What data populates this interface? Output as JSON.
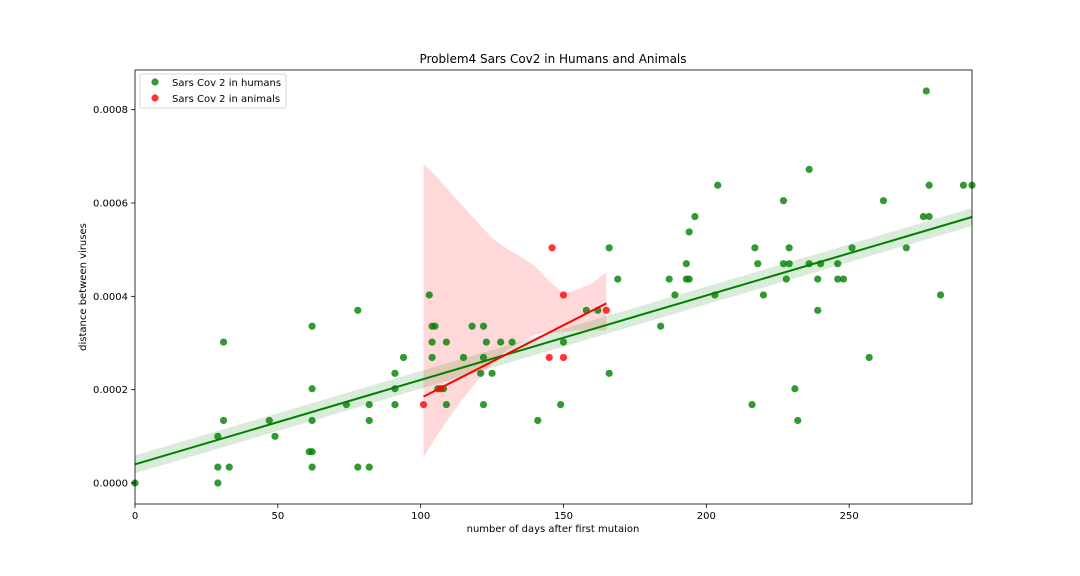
{
  "chart_data": {
    "type": "scatter",
    "title": "Problem4 Sars Cov2 in Humans and Animals",
    "xlabel": "number of days after first mutaion",
    "ylabel": "distance between viruses",
    "xlim": [
      0,
      293
    ],
    "ylim": [
      -4.5e-05,
      0.000885
    ],
    "xticks": [
      0,
      50,
      100,
      150,
      200,
      250
    ],
    "yticks": [
      0.0,
      0.0002,
      0.0004,
      0.0006,
      0.0008
    ],
    "xtick_labels": [
      "0",
      "50",
      "100",
      "150",
      "200",
      "250"
    ],
    "ytick_labels": [
      "0.0000",
      "0.0002",
      "0.0004",
      "0.0006",
      "0.0008"
    ],
    "legend_position": "top-left",
    "grid": false,
    "series": [
      {
        "name": "Sars Cov 2 in humans",
        "color": "#008000",
        "points": [
          [
            0,
            0.0
          ],
          [
            29,
            0.0
          ],
          [
            29,
            3.4e-05
          ],
          [
            29,
            0.0001
          ],
          [
            31,
            0.000302
          ],
          [
            31,
            0.000134
          ],
          [
            33,
            3.4e-05
          ],
          [
            47,
            0.000134
          ],
          [
            49,
            0.0001
          ],
          [
            62,
            0.000336
          ],
          [
            62,
            0.000202
          ],
          [
            62,
            0.000134
          ],
          [
            61,
            6.7e-05
          ],
          [
            62,
            6.7e-05
          ],
          [
            62,
            3.4e-05
          ],
          [
            74,
            0.000168
          ],
          [
            78,
            0.00037
          ],
          [
            78,
            3.4e-05
          ],
          [
            82,
            0.000168
          ],
          [
            82,
            0.000134
          ],
          [
            82,
            3.4e-05
          ],
          [
            91,
            0.000235
          ],
          [
            91,
            0.000202
          ],
          [
            91,
            0.000168
          ],
          [
            94,
            0.000269
          ],
          [
            103,
            0.000403
          ],
          [
            104,
            0.000336
          ],
          [
            105,
            0.000336
          ],
          [
            104,
            0.000302
          ],
          [
            104,
            0.000269
          ],
          [
            106,
            0.000202
          ],
          [
            108,
            0.000202
          ],
          [
            109,
            0.000302
          ],
          [
            109,
            0.000168
          ],
          [
            115,
            0.000269
          ],
          [
            118,
            0.000336
          ],
          [
            122,
            0.000336
          ],
          [
            123,
            0.000302
          ],
          [
            122,
            0.000269
          ],
          [
            121,
            0.000235
          ],
          [
            125,
            0.000235
          ],
          [
            122,
            0.000168
          ],
          [
            128,
            0.000302
          ],
          [
            132,
            0.000302
          ],
          [
            141,
            0.000134
          ],
          [
            149,
            0.000168
          ],
          [
            150,
            0.000302
          ],
          [
            158,
            0.00037
          ],
          [
            162,
            0.00037
          ],
          [
            166,
            0.000504
          ],
          [
            166,
            0.000235
          ],
          [
            169,
            0.000437
          ],
          [
            184,
            0.000336
          ],
          [
            187,
            0.000437
          ],
          [
            189,
            0.000403
          ],
          [
            193,
            0.00047
          ],
          [
            193,
            0.000437
          ],
          [
            194,
            0.000538
          ],
          [
            194,
            0.000437
          ],
          [
            196,
            0.000571
          ],
          [
            203,
            0.000403
          ],
          [
            204,
            0.000638
          ],
          [
            216,
            0.000168
          ],
          [
            217,
            0.000504
          ],
          [
            218,
            0.00047
          ],
          [
            220,
            0.000403
          ],
          [
            227,
            0.000605
          ],
          [
            227,
            0.00047
          ],
          [
            228,
            0.000437
          ],
          [
            229,
            0.000504
          ],
          [
            229,
            0.00047
          ],
          [
            231,
            0.000202
          ],
          [
            232,
            0.000134
          ],
          [
            236,
            0.000672
          ],
          [
            236,
            0.00047
          ],
          [
            239,
            0.000437
          ],
          [
            239,
            0.00037
          ],
          [
            240,
            0.00047
          ],
          [
            246,
            0.00047
          ],
          [
            246,
            0.000437
          ],
          [
            248,
            0.000437
          ],
          [
            251,
            0.000504
          ],
          [
            257,
            0.000269
          ],
          [
            262,
            0.000605
          ],
          [
            270,
            0.000504
          ],
          [
            276,
            0.000571
          ],
          [
            277,
            0.00084
          ],
          [
            278,
            0.000638
          ],
          [
            278,
            0.000571
          ],
          [
            282,
            0.000403
          ],
          [
            290,
            0.000638
          ],
          [
            293,
            0.000638
          ]
        ],
        "regression": {
          "x": [
            0,
            293
          ],
          "y": [
            4e-05,
            0.00057
          ]
        }
      },
      {
        "name": "Sars Cov 2 in animals",
        "color": "#ff0000",
        "points": [
          [
            101,
            0.000168
          ],
          [
            107,
            0.000202
          ],
          [
            145,
            0.000269
          ],
          [
            146,
            0.000504
          ],
          [
            150,
            0.000403
          ],
          [
            150,
            0.000269
          ],
          [
            165,
            0.00037
          ]
        ],
        "regression": {
          "x": [
            101,
            165
          ],
          "y": [
            0.000185,
            0.000385
          ]
        },
        "ci_band": {
          "x": [
            101,
            105,
            110,
            115,
            120,
            125,
            130,
            135,
            140,
            145,
            150,
            155,
            160,
            165
          ],
          "upper": [
            0.000683,
            0.00066,
            0.000625,
            0.000592,
            0.000558,
            0.000525,
            0.000503,
            0.000485,
            0.000465,
            0.000433,
            0.000405,
            0.000415,
            0.000428,
            0.000452
          ],
          "lower": [
            5.5e-05,
            9.5e-05,
            0.00014,
            0.000182,
            0.00022,
            0.000257,
            0.000283,
            0.000302,
            0.000318,
            0.000323,
            0.000323,
            0.000327,
            0.000327,
            0.000327
          ]
        }
      }
    ]
  }
}
